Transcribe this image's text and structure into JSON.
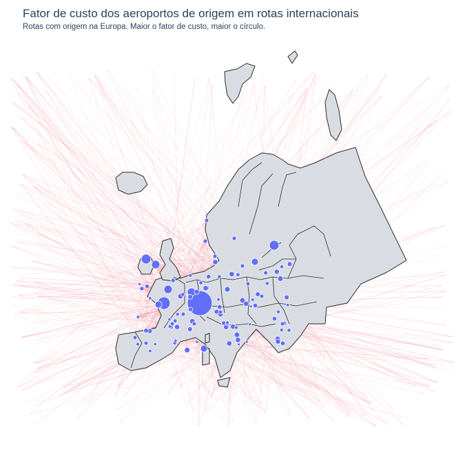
{
  "title": "Fator de custo dos aeroportos de origem em rotas internacionais",
  "subtitle": "Rotas com origem na Europa. Maior o fator de custo, maior o círculo.",
  "colors": {
    "land": "#d9dde3",
    "border": "#2b2b2b",
    "route": "#ef5a72",
    "airport": "#636efa",
    "airport_outline": "#ffffff"
  },
  "map": {
    "projection": "orthographic",
    "region": "Europe",
    "layers": [
      "routes",
      "land",
      "country-borders",
      "airports"
    ]
  }
}
